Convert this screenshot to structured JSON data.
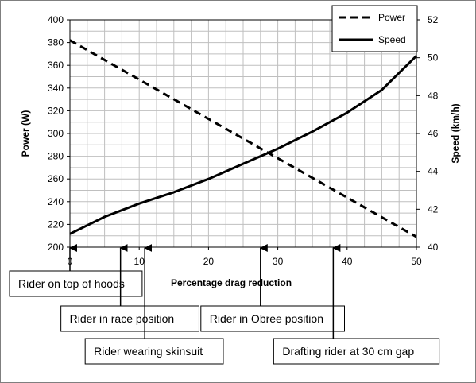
{
  "chart_data": {
    "type": "line",
    "title": "",
    "xlabel": "Percentage drag reduction",
    "ylabel": "Power (W)",
    "y2label": "Speed (km/h)",
    "xlim": [
      0,
      50
    ],
    "ylim": [
      200,
      400
    ],
    "y2lim": [
      40,
      52
    ],
    "x_ticks": [
      0,
      10,
      20,
      30,
      40,
      50
    ],
    "y_ticks": [
      200,
      220,
      240,
      260,
      280,
      300,
      320,
      340,
      360,
      380,
      400
    ],
    "y2_ticks": [
      40,
      42,
      44,
      46,
      48,
      50,
      52
    ],
    "grid": true,
    "legend_position": "top-right",
    "series": [
      {
        "name": "Power",
        "axis": "left",
        "style": "dashed",
        "x": [
          0,
          50
        ],
        "y": [
          382,
          209
        ]
      },
      {
        "name": "Speed",
        "axis": "right",
        "style": "solid",
        "x": [
          0,
          5,
          10,
          15,
          20,
          25,
          30,
          35,
          40,
          45,
          50
        ],
        "y": [
          40.7,
          41.6,
          42.3,
          42.9,
          43.6,
          44.4,
          45.2,
          46.1,
          47.1,
          48.3,
          50.1
        ]
      }
    ],
    "annotations": [
      {
        "text": "Rider on top of hoods",
        "x": 0,
        "row": 0
      },
      {
        "text": "Rider in race position",
        "x": 7.3,
        "row": 1
      },
      {
        "text": "Rider wearing skinsuit",
        "x": 10.8,
        "row": 2
      },
      {
        "text": "Rider in Obree position",
        "x": 27.5,
        "row": 1
      },
      {
        "text": "Drafting rider at 30 cm gap",
        "x": 38,
        "row": 2
      }
    ]
  }
}
